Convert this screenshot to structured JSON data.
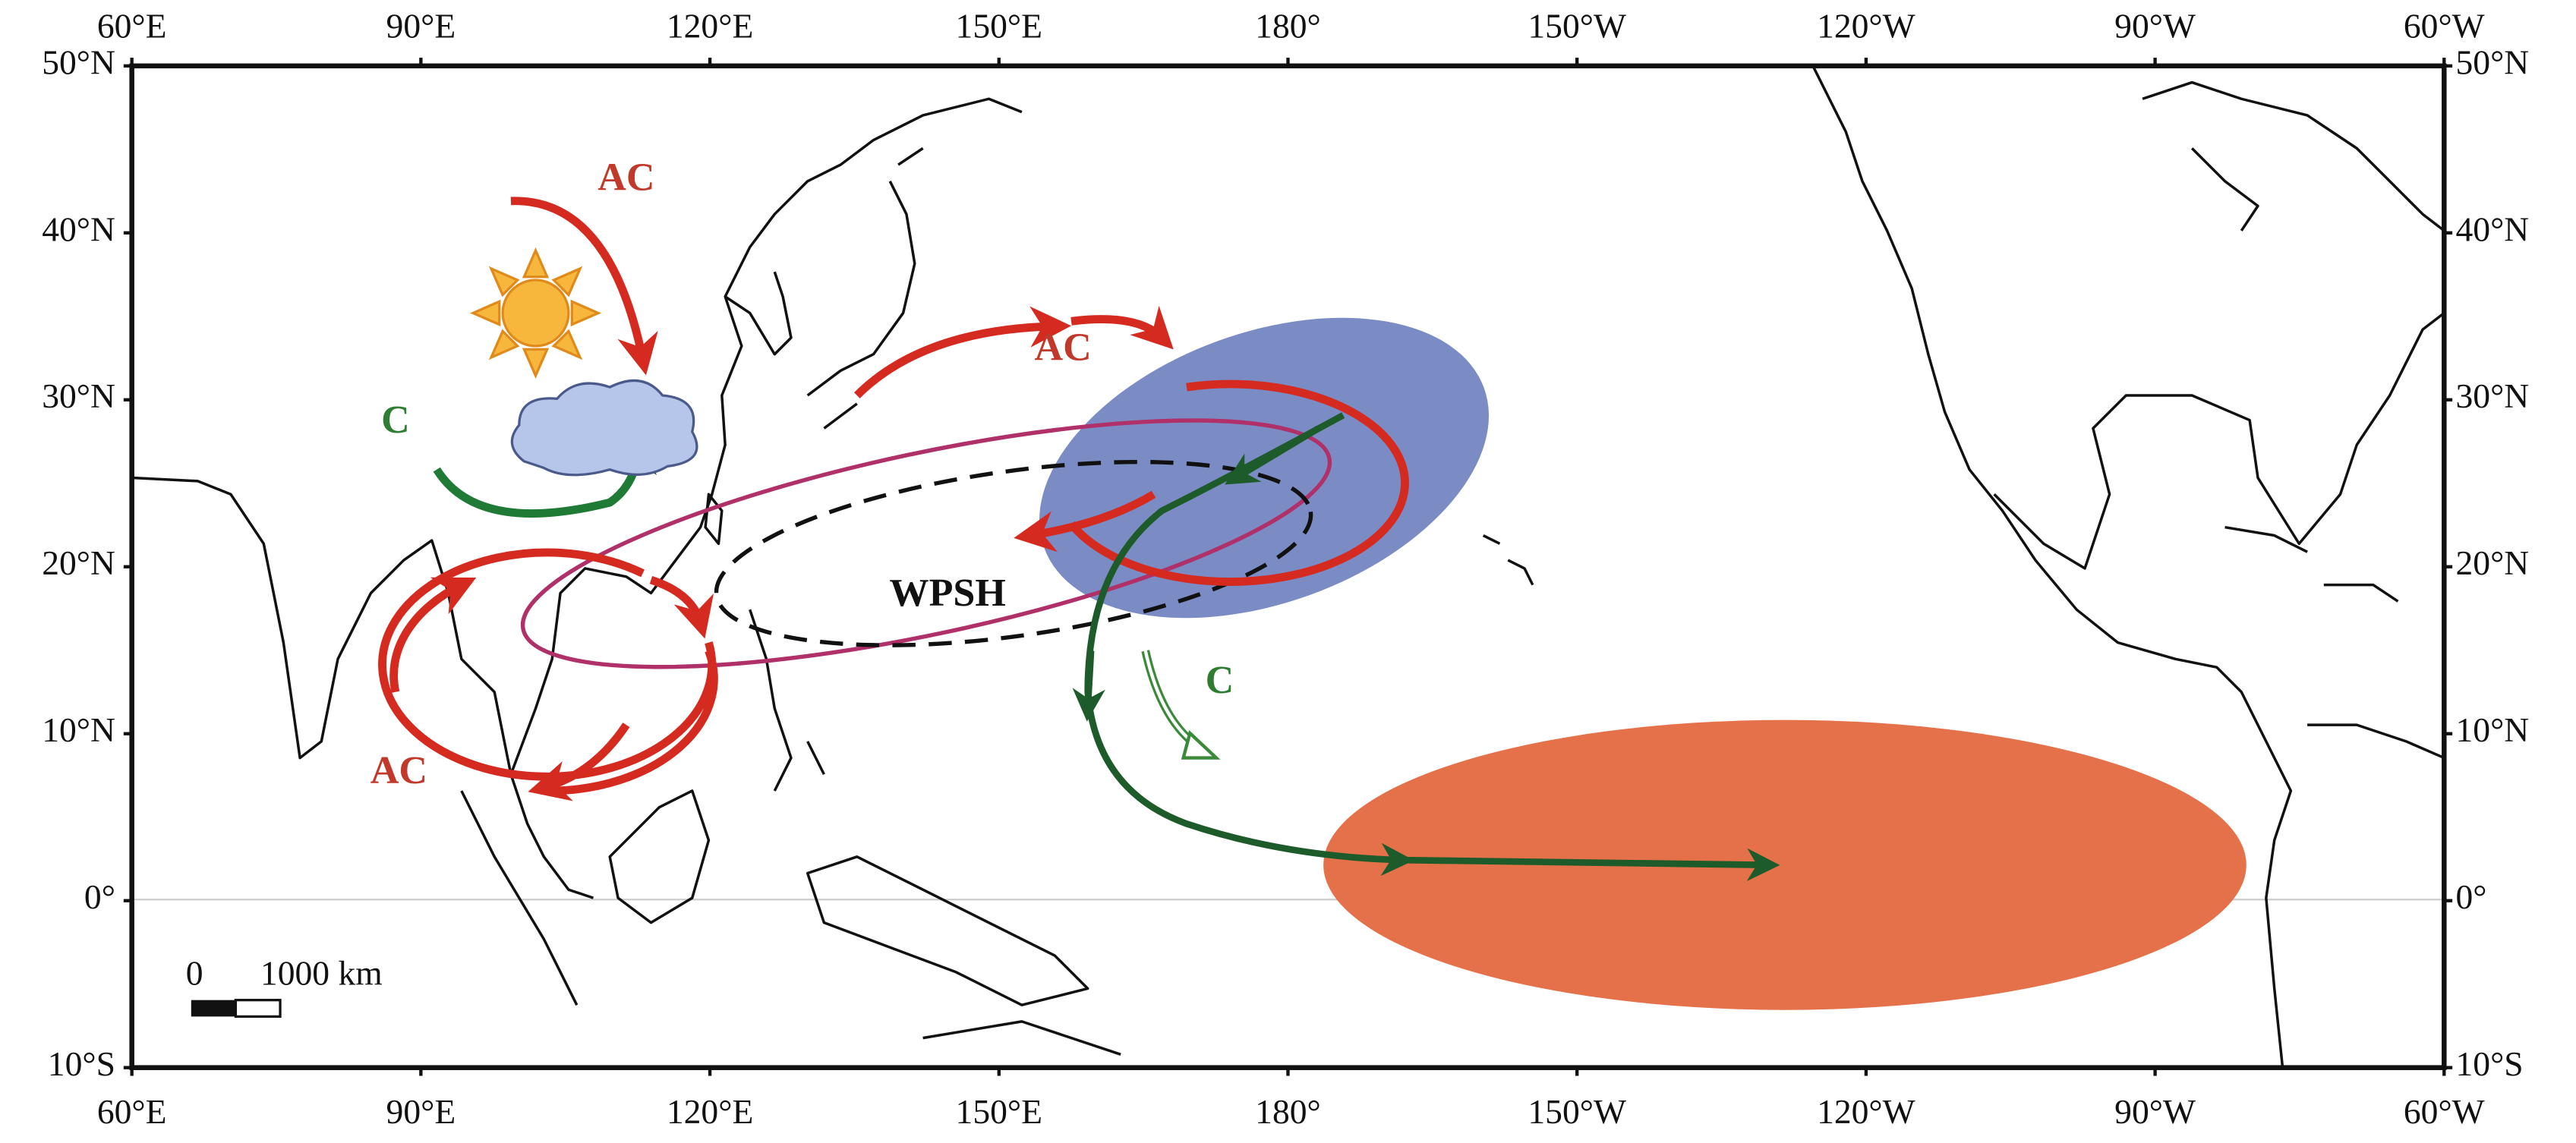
{
  "map": {
    "lon_labels": [
      "60°E",
      "90°E",
      "120°E",
      "150°E",
      "180°",
      "150°W",
      "120°W",
      "90°W",
      "60°W"
    ],
    "lat_labels": [
      "50°N",
      "40°N",
      "30°N",
      "20°N",
      "10°N",
      "0°",
      "10°S"
    ],
    "annotations": {
      "ac_north": "AC",
      "ac_center": "AC",
      "ac_south": "AC",
      "c_west": "C",
      "c_east": "C",
      "wpsh": "WPSH"
    },
    "scale_bar": {
      "start": "0",
      "length": "1000 km"
    }
  }
}
